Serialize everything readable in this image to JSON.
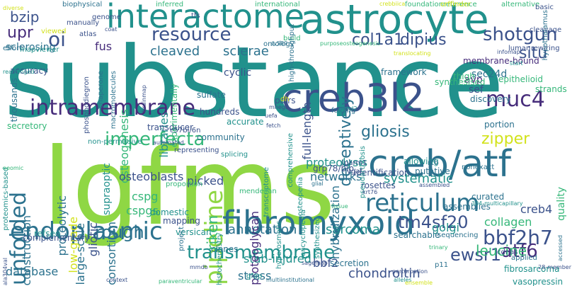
{
  "palette": {
    "yellow": "#d2e21b",
    "light_green": "#8fd744",
    "green": "#5ec962",
    "teal_green": "#35b779",
    "teal": "#21918c",
    "blue_teal": "#2c728e",
    "blue": "#3b528b",
    "indigo": "#472d7b",
    "purple": "#440154"
  },
  "words": [
    {
      "id": "substance",
      "text": "substance",
      "color": "teal"
    },
    {
      "id": "lgfms",
      "text": "lgfms",
      "color": "light_green"
    },
    {
      "id": "astrocyte",
      "text": "astrocyte",
      "color": "teal"
    },
    {
      "id": "interactome",
      "text": "interactome",
      "color": "teal"
    },
    {
      "id": "creb3l2",
      "text": "creb3l2",
      "color": "blue"
    },
    {
      "id": "creb_atf",
      "text": "creb/atf",
      "color": "blue_teal"
    },
    {
      "id": "fibromyxoid",
      "text": "fibromyxoid",
      "color": "blue_teal"
    },
    {
      "id": "reticulum",
      "text": "reticulum",
      "color": "blue_teal"
    },
    {
      "id": "endoplasmic",
      "text": "endoplasmic",
      "color": "blue_teal"
    },
    {
      "id": "intramembrane",
      "text": "intramembrane",
      "color": "indigo"
    },
    {
      "id": "unfolded",
      "text": "unfolded",
      "color": "blue_teal"
    },
    {
      "id": "pipeline",
      "text": "pipeline",
      "color": "light_green"
    },
    {
      "id": "resource",
      "text": "resource",
      "color": "blue"
    },
    {
      "id": "muc4",
      "text": "muc4",
      "color": "indigo"
    },
    {
      "id": "bbf2h7",
      "text": "bbf2h7",
      "color": "blue"
    },
    {
      "id": "transmembrane",
      "text": "transmembrane",
      "color": "teal"
    },
    {
      "id": "imperfecta",
      "text": "imperfecta",
      "color": "teal_green"
    },
    {
      "id": "shotgun",
      "text": "shotgun",
      "color": "blue"
    },
    {
      "id": "col1a1",
      "text": "col1a1",
      "color": "blue"
    },
    {
      "id": "dipius",
      "text": "dipius",
      "color": "blue"
    },
    {
      "id": "oi",
      "text": "oi",
      "color": "blue"
    },
    {
      "id": "bzip",
      "text": "bzip",
      "color": "blue"
    },
    {
      "id": "upr",
      "text": "upr",
      "color": "indigo"
    },
    {
      "id": "rough",
      "text": "rough",
      "color": "blue_teal"
    },
    {
      "id": "atf6",
      "text": "atf6",
      "color": "indigo"
    },
    {
      "id": "ewsr1",
      "text": "ewsr1",
      "color": "blue"
    },
    {
      "id": "gliosis",
      "text": "gliosis",
      "color": "blue_teal"
    },
    {
      "id": "tm4sf20",
      "text": "tm4sf20",
      "color": "blue"
    },
    {
      "id": "zipper",
      "text": "zipper",
      "color": "yellow"
    },
    {
      "id": "leucine",
      "text": "leucine",
      "color": "teal_green"
    },
    {
      "id": "cleaved",
      "text": "cleaved",
      "color": "blue_teal"
    },
    {
      "id": "sclerae",
      "text": "sclerae",
      "color": "blue_teal"
    },
    {
      "id": "situ",
      "text": "situ",
      "color": "blue"
    },
    {
      "id": "sarcoma",
      "text": "sarcoma",
      "color": "teal"
    },
    {
      "id": "annotation",
      "text": "annotation",
      "color": "blue_teal"
    },
    {
      "id": "deceptively",
      "text": "deceptively",
      "color": "blue_teal"
    },
    {
      "id": "full_length",
      "text": "full-length",
      "color": "blue"
    },
    {
      "id": "hybridization",
      "text": "hybridization",
      "color": "blue_teal"
    },
    {
      "id": "systematic",
      "text": "systematic",
      "color": "teal"
    },
    {
      "id": "networks",
      "text": "networks",
      "color": "blue_teal"
    },
    {
      "id": "proteolysis",
      "text": "proteolysis",
      "color": "teal"
    },
    {
      "id": "osteogenesis",
      "text": "osteogenesis",
      "color": "teal_green"
    },
    {
      "id": "libraries",
      "text": "libraries",
      "color": "teal"
    },
    {
      "id": "chondroitin",
      "text": "chondroitin",
      "color": "blue"
    },
    {
      "id": "stab_injured",
      "text": "stab-injured",
      "color": "teal"
    },
    {
      "id": "database",
      "text": "database",
      "color": "blue_teal"
    },
    {
      "id": "bbf2",
      "text": "bbf2",
      "color": "blue"
    },
    {
      "id": "creb4",
      "text": "creb4",
      "color": "blue"
    },
    {
      "id": "collagen",
      "text": "collagen",
      "color": "teal_green"
    },
    {
      "id": "quality",
      "text": "quality",
      "color": "teal_green"
    },
    {
      "id": "golgi",
      "text": "golgi",
      "color": "teal"
    },
    {
      "id": "riken",
      "text": "riken",
      "color": "teal_green"
    },
    {
      "id": "proteoglycan",
      "text": "proteoglycan",
      "color": "indigo"
    },
    {
      "id": "cspg",
      "text": "cspg",
      "color": "teal_green"
    },
    {
      "id": "cspgs",
      "text": "cspgs",
      "color": "teal_green"
    },
    {
      "id": "picked",
      "text": "picked",
      "color": "blue"
    },
    {
      "id": "osteoblasts",
      "text": "osteoblasts",
      "color": "blue"
    },
    {
      "id": "consortium",
      "text": "consortium",
      "color": "blue_teal"
    },
    {
      "id": "gliotic",
      "text": "gliotic",
      "color": "blue"
    },
    {
      "id": "large_scale",
      "text": "large-scale",
      "color": "blue_teal"
    },
    {
      "id": "low_grade",
      "text": "low-grade",
      "color": "yellow"
    },
    {
      "id": "proteolytic",
      "text": "proteolytic",
      "color": "blue_teal"
    },
    {
      "id": "construction",
      "text": "construction",
      "color": "blue_teal"
    },
    {
      "id": "sclerosing",
      "text": "sclerosing",
      "color": "blue_teal"
    },
    {
      "id": "fus",
      "text": "fus",
      "color": "indigo"
    },
    {
      "id": "sec24d",
      "text": "sec24d",
      "color": "blue_teal"
    },
    {
      "id": "avp",
      "text": "avp",
      "color": "indigo"
    },
    {
      "id": "sef",
      "text": "sef",
      "color": "blue"
    },
    {
      "id": "framework",
      "text": "framework",
      "color": "blue_teal"
    },
    {
      "id": "stress",
      "text": "stress",
      "color": "blue_teal"
    },
    {
      "id": "membrane_bound",
      "text": "membrane-bound",
      "color": "indigo"
    },
    {
      "id": "supraoptic",
      "text": "supraoptic",
      "color": "teal"
    },
    {
      "id": "cyclic",
      "text": "cyclic",
      "color": "blue"
    },
    {
      "id": "sulfate",
      "text": "sulfate",
      "color": "blue_teal"
    },
    {
      "id": "hundreds",
      "text": "hundreds",
      "color": "blue"
    },
    {
      "id": "community",
      "text": "community",
      "color": "blue_teal"
    },
    {
      "id": "accurate",
      "text": "accurate",
      "color": "teal"
    },
    {
      "id": "clones",
      "text": "clones",
      "color": "blue_teal"
    },
    {
      "id": "domestic",
      "text": "domestic",
      "color": "teal"
    },
    {
      "id": "mapping",
      "text": "mapping",
      "color": "blue"
    },
    {
      "id": "versican",
      "text": "versican",
      "color": "teal"
    },
    {
      "id": "complementary",
      "text": "complementary",
      "color": "blue"
    },
    {
      "id": "refseq",
      "text": "refseq",
      "color": "teal"
    },
    {
      "id": "secretion",
      "text": "secretion",
      "color": "blue_teal"
    },
    {
      "id": "curated",
      "text": "curated",
      "color": "blue_teal"
    },
    {
      "id": "assemblies",
      "text": "assemblies",
      "color": "blue_teal"
    },
    {
      "id": "searchable",
      "text": "searchable",
      "color": "blue_teal"
    },
    {
      "id": "rosettes",
      "text": "rosettes",
      "color": "blue"
    },
    {
      "id": "identification",
      "text": "identification",
      "color": "blue"
    },
    {
      "id": "allowing",
      "text": "allowing",
      "color": "teal"
    },
    {
      "id": "putative",
      "text": "putative",
      "color": "blue_teal"
    },
    {
      "id": "portion",
      "text": "portion",
      "color": "blue_teal"
    },
    {
      "id": "discovery",
      "text": "discovery",
      "color": "blue_teal"
    },
    {
      "id": "synthesised",
      "text": "synthesised",
      "color": "teal_green"
    },
    {
      "id": "thigh",
      "text": "thigh",
      "color": "teal_green"
    },
    {
      "id": "epithelioid",
      "text": "epithelioid",
      "color": "teal_green"
    },
    {
      "id": "strands",
      "text": "strands",
      "color": "teal_green"
    },
    {
      "id": "transducer",
      "text": "transducer",
      "color": "blue"
    },
    {
      "id": "fibrosarcoma",
      "text": "fibrosarcoma",
      "color": "teal"
    },
    {
      "id": "vasopressin",
      "text": "vasopressin",
      "color": "teal"
    },
    {
      "id": "applied",
      "text": "applied",
      "color": "blue_teal"
    },
    {
      "id": "cdnas",
      "text": "cdnas",
      "color": "blue"
    },
    {
      "id": "p11",
      "text": "p11",
      "color": "blue_teal"
    },
    {
      "id": "grp78_bip",
      "text": "grp78/bip",
      "color": "blue"
    },
    {
      "id": "thousands",
      "text": "thousands",
      "color": "blue_teal"
    },
    {
      "id": "secretory",
      "text": "secretory",
      "color": "teal_green"
    },
    {
      "id": "accuracy",
      "text": "accuracy",
      "color": "blue"
    },
    {
      "id": "phosphodiegron",
      "text": "phosphodiegron",
      "color": "blue"
    },
    {
      "id": "chaperone",
      "text": "chaperone",
      "color": "blue_teal"
    },
    {
      "id": "macromolecules",
      "text": "macromolecules",
      "color": "blue_teal"
    },
    {
      "id": "experimentally",
      "text": "experimentally",
      "color": "teal_green"
    },
    {
      "id": "splicing",
      "text": "splicing",
      "color": "teal"
    },
    {
      "id": "transcriptome",
      "text": "transcriptome",
      "color": "teal"
    },
    {
      "id": "comprehensive",
      "text": "comprehensive",
      "color": "teal"
    },
    {
      "id": "pairs",
      "text": "pairs",
      "color": "blue"
    },
    {
      "id": "dh",
      "text": "dh",
      "color": "yellow"
    },
    {
      "id": "pseudarthrosis",
      "text": "pseudarthrosis",
      "color": "teal"
    },
    {
      "id": "rcb",
      "text": "rcb",
      "color": "blue_teal"
    },
    {
      "id": "nonexact",
      "text": "nonexact",
      "color": "blue_teal"
    },
    {
      "id": "mendelian",
      "text": "mendelian",
      "color": "teal_green"
    },
    {
      "id": "histochemistry",
      "text": "histochemistry",
      "color": "teal"
    },
    {
      "id": "hyperosmotic",
      "text": "hyperosmotic",
      "color": "teal"
    },
    {
      "id": "encyclopedia",
      "text": "encyclopedia",
      "color": "teal"
    },
    {
      "id": "synthesized",
      "text": "synthesized",
      "color": "teal"
    },
    {
      "id": "osteopenia",
      "text": "osteopenia",
      "color": "teal"
    },
    {
      "id": "vgaf",
      "text": "vgaf",
      "color": "blue"
    },
    {
      "id": "parm1",
      "text": "parm1",
      "color": "blue"
    },
    {
      "id": "biophysical",
      "text": "biophysical",
      "color": "blue_teal"
    },
    {
      "id": "genome",
      "text": "genome",
      "color": "blue"
    },
    {
      "id": "manually",
      "text": "manually",
      "color": "blue"
    },
    {
      "id": "coat",
      "text": "coat",
      "color": "blue"
    },
    {
      "id": "atlas",
      "text": "atlas",
      "color": "blue"
    },
    {
      "id": "viewed",
      "text": "viewed",
      "color": "yellow"
    },
    {
      "id": "effort",
      "text": "effort",
      "color": "blue_teal"
    },
    {
      "id": "mapviewer",
      "text": "mapviewer",
      "color": "teal"
    },
    {
      "id": "inferred",
      "text": "inferred",
      "color": "teal_green"
    },
    {
      "id": "tfs",
      "text": "tfs",
      "color": "blue"
    },
    {
      "id": "international",
      "text": "international",
      "color": "teal_green"
    },
    {
      "id": "foundationreference",
      "text": "foundationreference",
      "color": "teal_green"
    },
    {
      "id": "orffinder",
      "text": "orffinder",
      "color": "yellow"
    },
    {
      "id": "alternative",
      "text": "alternative",
      "color": "teal_green"
    },
    {
      "id": "basic",
      "text": "basic",
      "color": "blue"
    },
    {
      "id": "cleavage",
      "text": "cleavage",
      "color": "blue"
    },
    {
      "id": "rewiring",
      "text": "rewiring",
      "color": "blue"
    },
    {
      "id": "hypothalamus",
      "text": "hypothalamus",
      "color": "blue_teal"
    },
    {
      "id": "luman",
      "text": "luman",
      "color": "blue"
    },
    {
      "id": "ontology",
      "text": "ontology",
      "color": "blue_teal"
    },
    {
      "id": "build",
      "text": "build",
      "color": "teal_green"
    },
    {
      "id": "high_throughput",
      "text": "high-throughput",
      "color": "blue_teal"
    },
    {
      "id": "purposeosteogenesis",
      "text": "purposeosteogenesis",
      "color": "teal_green"
    },
    {
      "id": "translocating",
      "text": "translocating",
      "color": "yellow"
    },
    {
      "id": "folding",
      "text": "folding",
      "color": "blue_teal"
    },
    {
      "id": "brainmap",
      "text": "brainmap",
      "color": "blue"
    },
    {
      "id": "c57bl_6n",
      "text": "c57bl/6n",
      "color": "blue"
    },
    {
      "id": "non_permissive",
      "text": "non-permissive",
      "color": "teal"
    },
    {
      "id": "representing",
      "text": "representing",
      "color": "blue"
    },
    {
      "id": "proteomics_based",
      "text": "proteomics-based",
      "color": "teal"
    },
    {
      "id": "automated",
      "text": "automated",
      "color": "blue"
    },
    {
      "id": "proportion",
      "text": "proportion",
      "color": "teal_green"
    },
    {
      "id": "glial",
      "text": "glial",
      "color": "blue_teal"
    },
    {
      "id": "krt76",
      "text": "krt76",
      "color": "blue"
    },
    {
      "id": "multi_capillary",
      "text": "304-multicapillary",
      "color": "teal"
    },
    {
      "id": "project",
      "text": "project",
      "color": "blue_teal"
    },
    {
      "id": "sequencing",
      "text": "sequencing",
      "color": "blue_teal"
    },
    {
      "id": "sagemap",
      "text": "sagemap",
      "color": "blue"
    },
    {
      "id": "gfap",
      "text": "gfap",
      "color": "teal"
    },
    {
      "id": "mmdb",
      "text": "mmdb",
      "color": "blue"
    },
    {
      "id": "context",
      "text": "context",
      "color": "blue"
    },
    {
      "id": "ala304val",
      "text": "ala304val",
      "color": "blue"
    },
    {
      "id": "paraventricular",
      "text": "paraventricular",
      "color": "teal_green"
    },
    {
      "id": "multiinstitutional",
      "text": "multiinstitutional",
      "color": "blue_teal"
    },
    {
      "id": "alleles",
      "text": "alleles",
      "color": "teal"
    },
    {
      "id": "perturbation",
      "text": "perturbation",
      "color": "blue"
    },
    {
      "id": "ensemble",
      "text": "ensemble",
      "color": "yellow"
    },
    {
      "id": "accessed",
      "text": "accessed",
      "color": "blue_teal"
    },
    {
      "id": "member",
      "text": "28-member",
      "color": "blue"
    },
    {
      "id": "sv589",
      "text": "sv589",
      "color": "blue_teal"
    },
    {
      "id": "mhega",
      "text": "mhega",
      "color": "blue"
    },
    {
      "id": "uefa",
      "text": "uefa",
      "color": "blue"
    },
    {
      "id": "fetch",
      "text": "fetch",
      "color": "blue"
    },
    {
      "id": "ighd2",
      "text": "ighd2",
      "color": "teal"
    },
    {
      "id": "diverse",
      "text": "diverse",
      "color": "yellow"
    },
    {
      "id": "crebbiica",
      "text": "crebbiica",
      "color": "yellow"
    },
    {
      "id": "intracellular",
      "text": "rearranged",
      "color": "teal"
    },
    {
      "id": "infosmall",
      "text": "infomap",
      "color": "blue"
    },
    {
      "id": "cooperative",
      "text": "neomic",
      "color": "teal_green"
    },
    {
      "id": "assembled",
      "text": "assembled",
      "color": "blue"
    },
    {
      "id": "start",
      "text": "start",
      "color": "teal"
    },
    {
      "id": "tuples",
      "text": "trinary",
      "color": "teal_green"
    },
    {
      "id": "tissue",
      "text": "tissue",
      "color": "teal_green"
    }
  ]
}
